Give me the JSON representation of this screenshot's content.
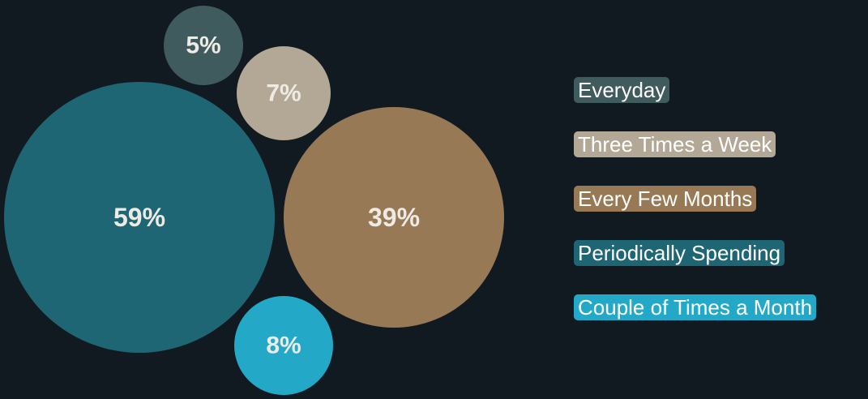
{
  "chart_data": {
    "type": "bubble",
    "title": "",
    "series": [
      {
        "name": "Everyday",
        "value": 5,
        "label": "5%",
        "color": "#3f5b5e"
      },
      {
        "name": "Three Times a Week",
        "value": 7,
        "label": "7%",
        "color": "#b3a795"
      },
      {
        "name": "Every Few Months",
        "value": 39,
        "label": "39%",
        "color": "#977a55"
      },
      {
        "name": "Periodically Spending",
        "value": 59,
        "label": "59%",
        "color": "#1f6675"
      },
      {
        "name": "Couple of Times a Month",
        "value": 8,
        "label": "8%",
        "color": "#23a9c7"
      }
    ],
    "legend_position": "right"
  }
}
